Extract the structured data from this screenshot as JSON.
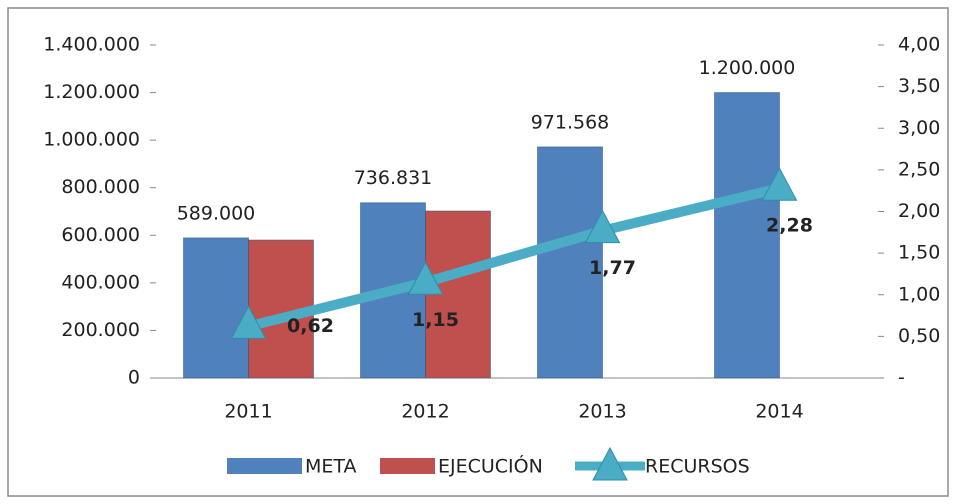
{
  "chart_data": {
    "type": "bar-line",
    "categories": [
      "2011",
      "2012",
      "2013",
      "2014"
    ],
    "series": [
      {
        "name": "META",
        "type": "bar",
        "color": "#4f81bd",
        "values": [
          589000,
          736831,
          971568,
          1200000
        ],
        "value_labels": [
          "589.000",
          "736.831",
          "971.568",
          "1.200.000"
        ]
      },
      {
        "name": "EJECUCIÓN",
        "type": "bar",
        "color": "#c0504d",
        "values": [
          580000,
          702000,
          null,
          null
        ]
      },
      {
        "name": "RECURSOS",
        "type": "line",
        "axis": "y2",
        "color": "#4bacc6",
        "values": [
          0.62,
          1.15,
          1.77,
          2.28
        ],
        "value_labels": [
          "0,62",
          "1,15",
          "1,77",
          "2,28"
        ]
      }
    ],
    "ylim": [
      0,
      1400000
    ],
    "yticks": [
      0,
      {
        "value": 200000,
        "label": "200.000"
      },
      {
        "value": 400000,
        "label": "400.000"
      },
      {
        "value": 600000,
        "label": "600.000"
      },
      {
        "value": 800000,
        "label": "800.000"
      },
      {
        "value": 1000000,
        "label": "1.000.000"
      },
      {
        "value": 1200000,
        "label": "1.200.000"
      },
      {
        "value": 1400000,
        "label": "1.400.000"
      }
    ],
    "y2lim": [
      0,
      4
    ],
    "y2ticks": [
      {
        "value": 0,
        "label": "-"
      },
      {
        "value": 0.5,
        "label": "0,50"
      },
      {
        "value": 1,
        "label": "1,00"
      },
      {
        "value": 1.5,
        "label": "1,50"
      },
      {
        "value": 2,
        "label": "2,00"
      },
      {
        "value": 2.5,
        "label": "2,50"
      },
      {
        "value": 3,
        "label": "3,00"
      },
      {
        "value": 3.5,
        "label": "3,50"
      },
      {
        "value": 4,
        "label": "4,00"
      }
    ],
    "legend": "bottom"
  }
}
